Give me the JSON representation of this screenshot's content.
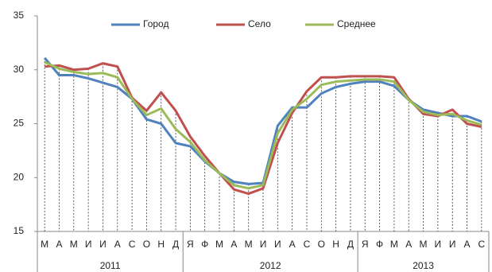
{
  "chart_data": {
    "type": "line",
    "categories": [
      "М",
      "А",
      "М",
      "И",
      "И",
      "А",
      "С",
      "О",
      "Н",
      "Д",
      "Я",
      "Ф",
      "М",
      "А",
      "М",
      "И",
      "И",
      "А",
      "С",
      "О",
      "Н",
      "Д",
      "Я",
      "Ф",
      "М",
      "А",
      "М",
      "И",
      "И",
      "А",
      "С"
    ],
    "category_groups": [
      {
        "label": "2011",
        "size": 10
      },
      {
        "label": "2012",
        "size": 12
      },
      {
        "label": "2013",
        "size": 9
      }
    ],
    "series": [
      {
        "name": "Город",
        "color": "#4f81bd",
        "values": [
          31.1,
          29.5,
          29.5,
          29.2,
          28.8,
          28.4,
          27.3,
          25.4,
          25.0,
          23.2,
          22.9,
          21.5,
          20.4,
          19.6,
          19.4,
          19.5,
          24.8,
          26.5,
          26.5,
          27.8,
          28.4,
          28.7,
          28.9,
          28.9,
          28.5,
          27.2,
          26.3,
          26.0,
          25.7,
          25.7,
          25.2
        ]
      },
      {
        "name": "Село",
        "color": "#c0504d",
        "values": [
          30.3,
          30.4,
          30.0,
          30.1,
          30.6,
          30.3,
          27.4,
          26.2,
          27.9,
          26.2,
          23.8,
          22.0,
          20.4,
          18.9,
          18.5,
          19.0,
          23.2,
          26.0,
          28.0,
          29.3,
          29.3,
          29.4,
          29.4,
          29.4,
          29.3,
          27.3,
          25.9,
          25.7,
          26.3,
          25.0,
          24.7
        ]
      },
      {
        "name": "Среднее",
        "color": "#9bbb59",
        "values": [
          30.7,
          30.1,
          29.8,
          29.6,
          29.7,
          29.3,
          27.3,
          25.8,
          26.4,
          24.5,
          23.3,
          21.6,
          20.4,
          19.3,
          19.0,
          19.3,
          24.1,
          26.3,
          27.3,
          28.6,
          28.9,
          29.0,
          29.1,
          29.1,
          28.9,
          27.2,
          26.1,
          25.8,
          25.9,
          25.3,
          24.9
        ]
      }
    ],
    "ylim": [
      15,
      35
    ],
    "yticks": [
      15,
      20,
      25,
      30,
      35
    ],
    "legend": "top"
  }
}
